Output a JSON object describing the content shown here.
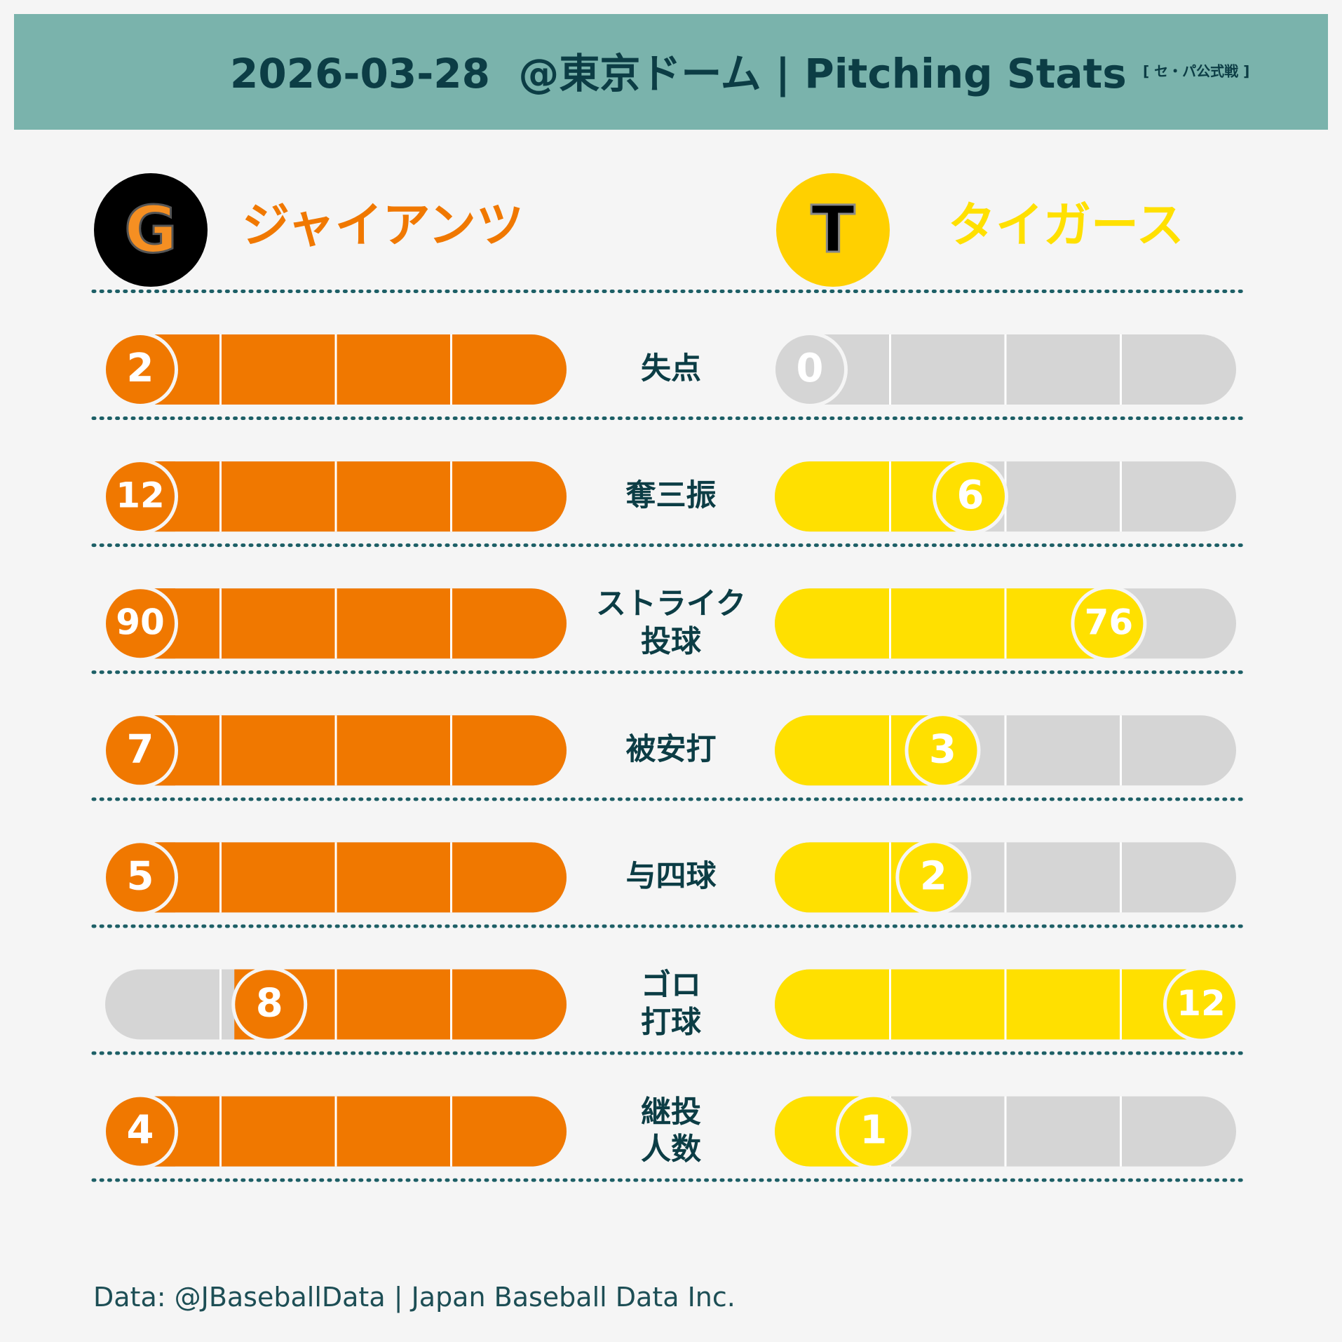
{
  "header": {
    "title": "2026-03-28  @東京ドーム | Pitching Stats",
    "tag": "[ セ・パ公式戦 ]"
  },
  "teams": {
    "home": {
      "name": "ジャイアンツ",
      "logo_letter": "G",
      "color": "#f07800",
      "logo_bg": "#000000"
    },
    "away": {
      "name": "タイガース",
      "logo_letter": "T",
      "color": "#ffe000",
      "logo_bg": "#ffd000"
    }
  },
  "footer": {
    "credit": "Data: @JBaseballData | Japan Baseball Data Inc."
  },
  "colors": {
    "header_bg": "#7ab3ac",
    "text_dark": "#0c3d45",
    "track": "#d5d5d5",
    "divider": "#1d5f66"
  },
  "chart_data": {
    "type": "bar",
    "categories": [
      "失点",
      "奪三振",
      "ストライク\n投球",
      "被安打",
      "与四球",
      "ゴロ\n打球",
      "継投\n人数"
    ],
    "series": [
      {
        "name": "ジャイアンツ",
        "values": [
          2,
          12,
          90,
          7,
          5,
          8,
          4
        ],
        "fill_fraction": [
          1,
          1,
          1,
          1,
          1,
          0.72,
          1
        ]
      },
      {
        "name": "タイガース",
        "values": [
          0,
          6,
          76,
          3,
          2,
          12,
          1
        ],
        "fill_fraction": [
          0,
          0.5,
          0.8,
          0.44,
          0.42,
          1,
          0.29
        ]
      }
    ]
  }
}
